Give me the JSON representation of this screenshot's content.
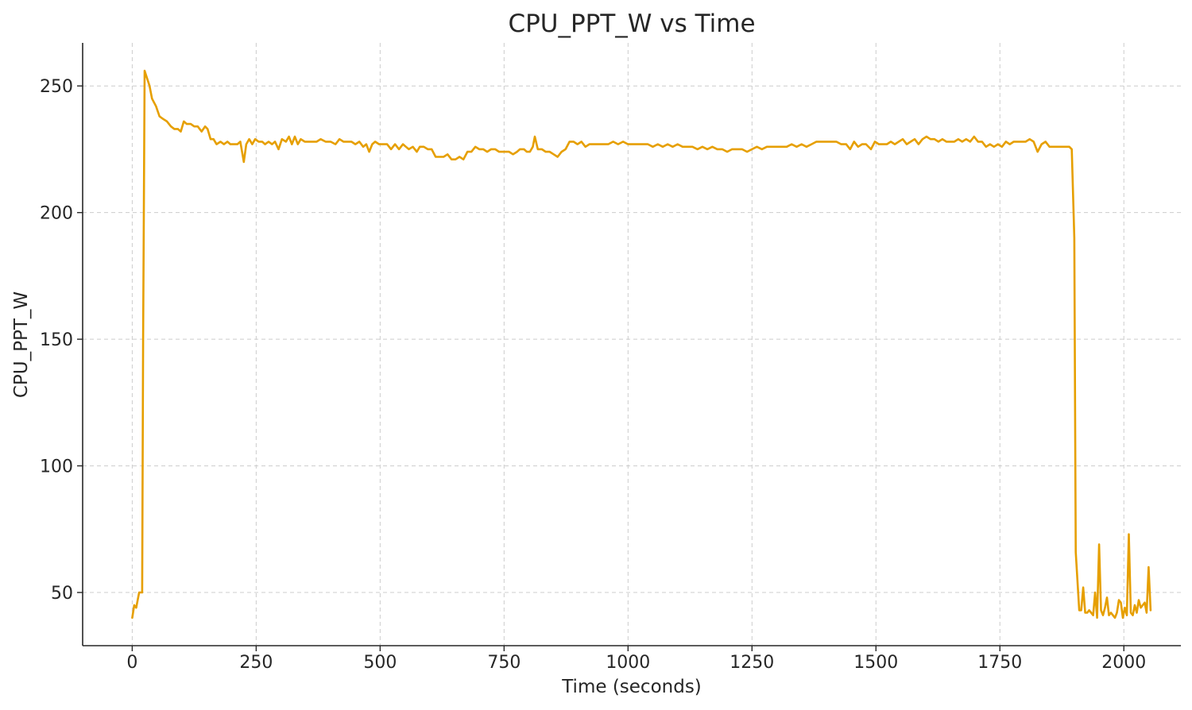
{
  "chart_data": {
    "type": "line",
    "title": "CPU_PPT_W vs Time",
    "xlabel": "Time (seconds)",
    "ylabel": "CPU_PPT_W",
    "xlim": [
      -100,
      2115
    ],
    "ylim": [
      29,
      267
    ],
    "x_ticks": [
      0,
      250,
      500,
      750,
      1000,
      1250,
      1500,
      1750,
      2000
    ],
    "y_ticks": [
      50,
      100,
      150,
      200,
      250
    ],
    "grid": true,
    "legend": "none",
    "series": [
      {
        "color": "#e69f00",
        "points": [
          [
            0,
            40
          ],
          [
            4,
            45
          ],
          [
            8,
            44
          ],
          [
            14,
            50
          ],
          [
            20,
            50
          ],
          [
            22,
            150
          ],
          [
            25,
            256
          ],
          [
            30,
            253
          ],
          [
            35,
            250
          ],
          [
            40,
            245
          ],
          [
            48,
            242
          ],
          [
            55,
            238
          ],
          [
            62,
            237
          ],
          [
            70,
            236
          ],
          [
            78,
            234
          ],
          [
            85,
            233
          ],
          [
            92,
            233
          ],
          [
            98,
            232
          ],
          [
            104,
            236
          ],
          [
            110,
            235
          ],
          [
            118,
            235
          ],
          [
            125,
            234
          ],
          [
            132,
            234
          ],
          [
            140,
            232
          ],
          [
            147,
            234
          ],
          [
            152,
            233
          ],
          [
            158,
            229
          ],
          [
            164,
            229
          ],
          [
            170,
            227
          ],
          [
            178,
            228
          ],
          [
            185,
            227
          ],
          [
            192,
            228
          ],
          [
            198,
            227
          ],
          [
            205,
            227
          ],
          [
            212,
            227
          ],
          [
            218,
            228
          ],
          [
            225,
            220
          ],
          [
            230,
            227
          ],
          [
            236,
            229
          ],
          [
            242,
            227
          ],
          [
            248,
            229
          ],
          [
            255,
            228
          ],
          [
            262,
            228
          ],
          [
            268,
            227
          ],
          [
            275,
            228
          ],
          [
            282,
            227
          ],
          [
            288,
            228
          ],
          [
            295,
            225
          ],
          [
            302,
            229
          ],
          [
            310,
            228
          ],
          [
            316,
            230
          ],
          [
            322,
            227
          ],
          [
            328,
            230
          ],
          [
            334,
            227
          ],
          [
            340,
            229
          ],
          [
            348,
            228
          ],
          [
            356,
            228
          ],
          [
            364,
            228
          ],
          [
            372,
            228
          ],
          [
            380,
            229
          ],
          [
            390,
            228
          ],
          [
            400,
            228
          ],
          [
            410,
            227
          ],
          [
            418,
            229
          ],
          [
            426,
            228
          ],
          [
            434,
            228
          ],
          [
            442,
            228
          ],
          [
            450,
            227
          ],
          [
            458,
            228
          ],
          [
            466,
            226
          ],
          [
            472,
            227
          ],
          [
            478,
            224
          ],
          [
            484,
            227
          ],
          [
            490,
            228
          ],
          [
            498,
            227
          ],
          [
            506,
            227
          ],
          [
            514,
            227
          ],
          [
            522,
            225
          ],
          [
            530,
            227
          ],
          [
            538,
            225
          ],
          [
            546,
            227
          ],
          [
            552,
            226
          ],
          [
            558,
            225
          ],
          [
            566,
            226
          ],
          [
            574,
            224
          ],
          [
            580,
            226
          ],
          [
            588,
            226
          ],
          [
            596,
            225
          ],
          [
            604,
            225
          ],
          [
            612,
            222
          ],
          [
            620,
            222
          ],
          [
            628,
            222
          ],
          [
            636,
            223
          ],
          [
            644,
            221
          ],
          [
            652,
            221
          ],
          [
            660,
            222
          ],
          [
            668,
            221
          ],
          [
            676,
            224
          ],
          [
            684,
            224
          ],
          [
            692,
            226
          ],
          [
            700,
            225
          ],
          [
            708,
            225
          ],
          [
            716,
            224
          ],
          [
            724,
            225
          ],
          [
            732,
            225
          ],
          [
            740,
            224
          ],
          [
            750,
            224
          ],
          [
            760,
            224
          ],
          [
            768,
            223
          ],
          [
            776,
            224
          ],
          [
            782,
            225
          ],
          [
            790,
            225
          ],
          [
            796,
            224
          ],
          [
            802,
            224
          ],
          [
            808,
            226
          ],
          [
            812,
            230
          ],
          [
            818,
            225
          ],
          [
            826,
            225
          ],
          [
            834,
            224
          ],
          [
            842,
            224
          ],
          [
            850,
            223
          ],
          [
            858,
            222
          ],
          [
            866,
            224
          ],
          [
            874,
            225
          ],
          [
            882,
            228
          ],
          [
            890,
            228
          ],
          [
            898,
            227
          ],
          [
            906,
            228
          ],
          [
            914,
            226
          ],
          [
            922,
            227
          ],
          [
            930,
            227
          ],
          [
            940,
            227
          ],
          [
            950,
            227
          ],
          [
            960,
            227
          ],
          [
            970,
            228
          ],
          [
            980,
            227
          ],
          [
            990,
            228
          ],
          [
            1000,
            227
          ],
          [
            1010,
            227
          ],
          [
            1020,
            227
          ],
          [
            1030,
            227
          ],
          [
            1040,
            227
          ],
          [
            1050,
            226
          ],
          [
            1060,
            227
          ],
          [
            1070,
            226
          ],
          [
            1080,
            227
          ],
          [
            1090,
            226
          ],
          [
            1100,
            227
          ],
          [
            1110,
            226
          ],
          [
            1120,
            226
          ],
          [
            1130,
            226
          ],
          [
            1140,
            225
          ],
          [
            1150,
            226
          ],
          [
            1160,
            225
          ],
          [
            1170,
            226
          ],
          [
            1180,
            225
          ],
          [
            1190,
            225
          ],
          [
            1200,
            224
          ],
          [
            1210,
            225
          ],
          [
            1220,
            225
          ],
          [
            1230,
            225
          ],
          [
            1240,
            224
          ],
          [
            1250,
            225
          ],
          [
            1260,
            226
          ],
          [
            1270,
            225
          ],
          [
            1280,
            226
          ],
          [
            1290,
            226
          ],
          [
            1300,
            226
          ],
          [
            1310,
            226
          ],
          [
            1320,
            226
          ],
          [
            1330,
            227
          ],
          [
            1340,
            226
          ],
          [
            1350,
            227
          ],
          [
            1360,
            226
          ],
          [
            1370,
            227
          ],
          [
            1380,
            228
          ],
          [
            1390,
            228
          ],
          [
            1400,
            228
          ],
          [
            1410,
            228
          ],
          [
            1420,
            228
          ],
          [
            1430,
            227
          ],
          [
            1440,
            227
          ],
          [
            1448,
            225
          ],
          [
            1456,
            228
          ],
          [
            1464,
            226
          ],
          [
            1472,
            227
          ],
          [
            1480,
            227
          ],
          [
            1490,
            225
          ],
          [
            1498,
            228
          ],
          [
            1506,
            227
          ],
          [
            1514,
            227
          ],
          [
            1522,
            227
          ],
          [
            1530,
            228
          ],
          [
            1538,
            227
          ],
          [
            1546,
            228
          ],
          [
            1554,
            229
          ],
          [
            1562,
            227
          ],
          [
            1570,
            228
          ],
          [
            1578,
            229
          ],
          [
            1586,
            227
          ],
          [
            1594,
            229
          ],
          [
            1602,
            230
          ],
          [
            1610,
            229
          ],
          [
            1618,
            229
          ],
          [
            1626,
            228
          ],
          [
            1634,
            229
          ],
          [
            1642,
            228
          ],
          [
            1650,
            228
          ],
          [
            1658,
            228
          ],
          [
            1666,
            229
          ],
          [
            1674,
            228
          ],
          [
            1682,
            229
          ],
          [
            1690,
            228
          ],
          [
            1698,
            230
          ],
          [
            1706,
            228
          ],
          [
            1714,
            228
          ],
          [
            1722,
            226
          ],
          [
            1730,
            227
          ],
          [
            1738,
            226
          ],
          [
            1746,
            227
          ],
          [
            1754,
            226
          ],
          [
            1762,
            228
          ],
          [
            1770,
            227
          ],
          [
            1778,
            228
          ],
          [
            1786,
            228
          ],
          [
            1794,
            228
          ],
          [
            1802,
            228
          ],
          [
            1810,
            229
          ],
          [
            1818,
            228
          ],
          [
            1826,
            224
          ],
          [
            1834,
            227
          ],
          [
            1842,
            228
          ],
          [
            1850,
            226
          ],
          [
            1858,
            226
          ],
          [
            1866,
            226
          ],
          [
            1874,
            226
          ],
          [
            1882,
            226
          ],
          [
            1890,
            226
          ],
          [
            1895,
            225
          ],
          [
            1900,
            190
          ],
          [
            1903,
            66
          ],
          [
            1906,
            56
          ],
          [
            1910,
            43
          ],
          [
            1914,
            43
          ],
          [
            1918,
            52
          ],
          [
            1922,
            42
          ],
          [
            1926,
            42
          ],
          [
            1930,
            43
          ],
          [
            1934,
            42
          ],
          [
            1938,
            41
          ],
          [
            1942,
            50
          ],
          [
            1946,
            40
          ],
          [
            1950,
            69
          ],
          [
            1954,
            43
          ],
          [
            1958,
            41
          ],
          [
            1962,
            44
          ],
          [
            1966,
            48
          ],
          [
            1970,
            41
          ],
          [
            1974,
            42
          ],
          [
            1978,
            41
          ],
          [
            1982,
            40
          ],
          [
            1986,
            42
          ],
          [
            1990,
            47
          ],
          [
            1994,
            46
          ],
          [
            1998,
            40
          ],
          [
            2002,
            44
          ],
          [
            2006,
            41
          ],
          [
            2010,
            73
          ],
          [
            2014,
            42
          ],
          [
            2018,
            41
          ],
          [
            2022,
            45
          ],
          [
            2026,
            42
          ],
          [
            2030,
            47
          ],
          [
            2034,
            44
          ],
          [
            2038,
            45
          ],
          [
            2042,
            46
          ],
          [
            2046,
            42
          ],
          [
            2050,
            60
          ],
          [
            2054,
            43
          ]
        ]
      }
    ]
  }
}
